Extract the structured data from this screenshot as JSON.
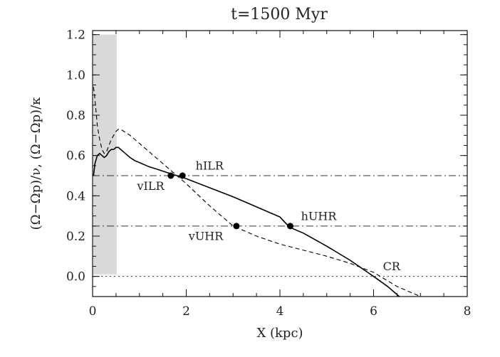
{
  "chart_data": {
    "type": "line",
    "title": "t=1500 Myr",
    "xlabel": "X (kpc)",
    "ylabel": "(Ω−Ωp)/ν, (Ω−Ωp)/κ",
    "xlim": [
      0,
      8
    ],
    "ylim": [
      -0.1,
      1.22
    ],
    "x_ticks": [
      0,
      2,
      4,
      6,
      8
    ],
    "y_ticks": [
      0.0,
      0.2,
      0.4,
      0.6,
      0.8,
      1.0,
      1.2
    ],
    "grid": false,
    "shaded_region": {
      "x": [
        0,
        0.5
      ],
      "y": [
        0.01,
        1.2
      ],
      "color": "#d9d9d9"
    },
    "series": [
      {
        "style": "solid",
        "x": [
          0.02,
          0.05,
          0.1,
          0.15,
          0.2,
          0.25,
          0.3,
          0.35,
          0.4,
          0.45,
          0.5,
          0.55,
          0.6,
          0.7,
          0.8,
          0.9,
          1.0,
          1.2,
          1.4,
          1.6,
          1.8,
          2.0,
          2.5,
          3.0,
          3.5,
          4.0,
          4.2,
          4.5,
          5.0,
          5.5,
          6.0,
          6.3,
          6.55
        ],
        "y": [
          0.5,
          0.56,
          0.6,
          0.61,
          0.6,
          0.59,
          0.6,
          0.62,
          0.63,
          0.63,
          0.64,
          0.64,
          0.63,
          0.61,
          0.59,
          0.575,
          0.565,
          0.545,
          0.53,
          0.515,
          0.5,
          0.485,
          0.44,
          0.395,
          0.345,
          0.295,
          0.245,
          0.215,
          0.15,
          0.08,
          0.0,
          -0.05,
          -0.1
        ]
      },
      {
        "style": "dashed",
        "x": [
          0.02,
          0.05,
          0.1,
          0.15,
          0.2,
          0.25,
          0.3,
          0.35,
          0.4,
          0.45,
          0.5,
          0.55,
          0.6,
          0.8,
          1.0,
          1.5,
          2.0,
          2.5,
          3.0,
          3.5,
          4.0,
          5.0,
          5.5,
          6.0,
          6.5,
          7.0
        ],
        "y": [
          0.94,
          0.88,
          0.75,
          0.68,
          0.63,
          0.61,
          0.62,
          0.65,
          0.68,
          0.7,
          0.72,
          0.73,
          0.73,
          0.7,
          0.66,
          0.56,
          0.46,
          0.35,
          0.25,
          0.2,
          0.16,
          0.1,
          0.065,
          0.02,
          -0.05,
          -0.1
        ]
      }
    ],
    "reference_lines": [
      {
        "y": 0.5,
        "style": "dash-dot"
      },
      {
        "y": 0.25,
        "style": "dash-dot"
      },
      {
        "y": 0.0,
        "style": "dotted"
      }
    ],
    "markers": [
      {
        "x": 1.67,
        "y": 0.5
      },
      {
        "x": 1.92,
        "y": 0.5
      },
      {
        "x": 3.07,
        "y": 0.25
      },
      {
        "x": 4.22,
        "y": 0.25
      }
    ],
    "annotations": [
      {
        "text": "hILR",
        "x": 2.2,
        "y": 0.53
      },
      {
        "text": "vILR",
        "x": 0.95,
        "y": 0.43
      },
      {
        "text": "hUHR",
        "x": 4.45,
        "y": 0.28
      },
      {
        "text": "vUHR",
        "x": 2.05,
        "y": 0.18
      },
      {
        "text": "CR",
        "x": 6.2,
        "y": 0.03
      }
    ]
  }
}
